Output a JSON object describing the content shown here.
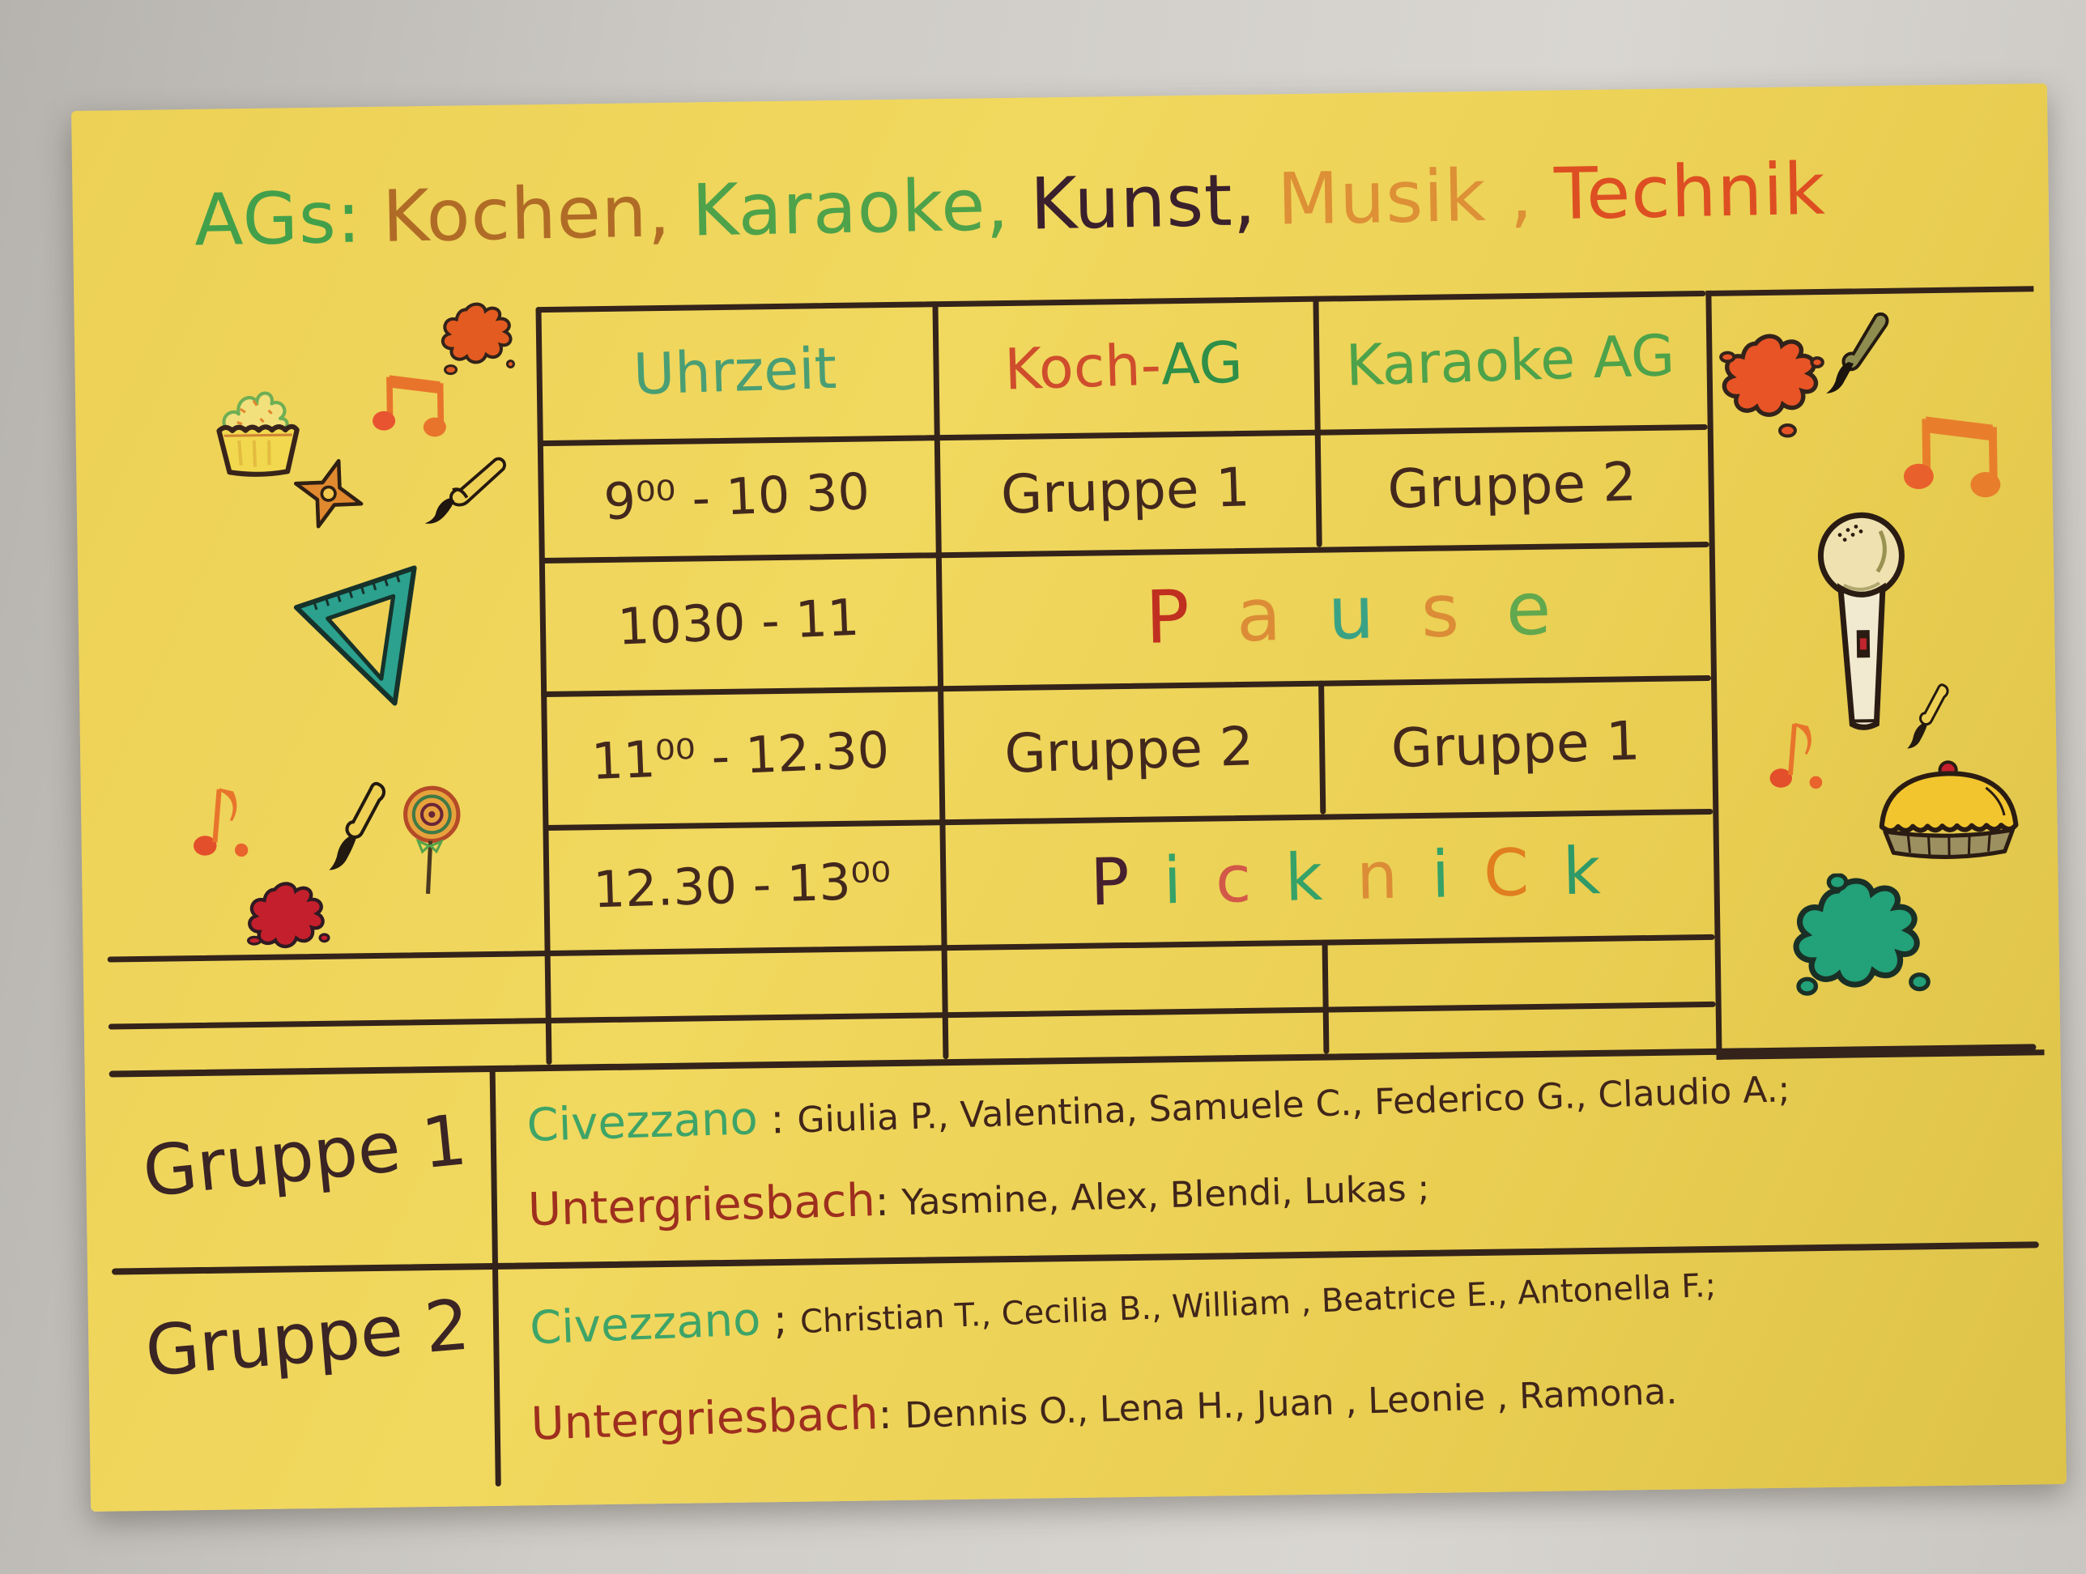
{
  "page": {
    "wall_color": "#cfccc7",
    "poster_color": "#ecd156",
    "line_color": "#33231a",
    "ink_color": "#42281c"
  },
  "title": {
    "segments": [
      {
        "text": "AGs:",
        "color": "#43a04a"
      },
      {
        "text": "Kochen,",
        "color": "#b06c26"
      },
      {
        "text": "Karaoke,",
        "color": "#4ea24a"
      },
      {
        "text": "Kunst,",
        "color": "#3a202c"
      },
      {
        "text": "Musik ,",
        "color": "#dd9036"
      },
      {
        "text": "Technik",
        "color": "#dd4f22"
      }
    ]
  },
  "schedule": {
    "header": {
      "time_label": "Uhrzeit",
      "time_color": "#4a9e74",
      "koch_parts": [
        {
          "text": "Koch-",
          "color": "#cf4d2c"
        },
        {
          "text": "AG",
          "color": "#2f8f48"
        }
      ],
      "karaoke_label": "Karaoke AG",
      "karaoke_color": "#4ea24a"
    },
    "rows": [
      {
        "time": "9⁰⁰ - 10 30",
        "koch": "Gruppe 1",
        "karaoke": "Gruppe 2"
      },
      {
        "time": "1030 - 11"
      },
      {
        "time": "11⁰⁰ - 12.30",
        "koch": "Gruppe 2",
        "karaoke": "Gruppe 1"
      },
      {
        "time": "12.30 - 13⁰⁰"
      }
    ],
    "pause_letters": [
      {
        "text": "P",
        "color": "#c03020"
      },
      {
        "text": "a",
        "color": "#dc8c36"
      },
      {
        "text": "u",
        "color": "#3aa284"
      },
      {
        "text": "s",
        "color": "#dc8c36"
      },
      {
        "text": "e",
        "color": "#62a84e"
      }
    ],
    "picknick_letters": [
      {
        "text": "P",
        "color": "#46202e"
      },
      {
        "text": "i",
        "color": "#36a268"
      },
      {
        "text": "c",
        "color": "#d25848"
      },
      {
        "text": "k",
        "color": "#36a268"
      },
      {
        "text": "n",
        "color": "#dc8c36"
      },
      {
        "text": "i",
        "color": "#36a268"
      },
      {
        "text": "C",
        "color": "#e07e20"
      },
      {
        "text": "k",
        "color": "#2f9a68"
      }
    ]
  },
  "groups": [
    {
      "label": "Gruppe 1",
      "lines": [
        {
          "location": "Civezzano",
          "color": "#3ea468",
          "sep": " : ",
          "names": "Giulia P., Valentina, Samuele C., Federico G.,  Claudio A.;"
        },
        {
          "location": "Untergriesbach",
          "color": "#9e2f1e",
          "sep": ": ",
          "names": "Yasmine,  Alex,   Blendi,    Lukas ;"
        }
      ]
    },
    {
      "label": "Gruppe 2",
      "lines": [
        {
          "location": "Civezzano",
          "color": "#3ea468",
          "sep": " ; ",
          "names": "Christian T.,  Cecilia B.,  William , Beatrice E.,   Antonella F.;"
        },
        {
          "location": "Untergriesbach",
          "color": "#9e2f1e",
          "sep": ": ",
          "names": "Dennis O.,  Lena H.,  Juan  ,  Leonie     ,   Ramona."
        }
      ]
    }
  ],
  "decorations": {
    "left": [
      "paint-splat-orange",
      "music-note-double",
      "cupcake",
      "shuriken",
      "paintbrush",
      "set-square",
      "music-note-single",
      "ink-pen",
      "lollipop",
      "paint-splat-red"
    ],
    "right": [
      "paint-splat-orange",
      "paintbrush",
      "music-note-double",
      "microphone",
      "ink-pen",
      "music-note-single",
      "pie",
      "paint-splat-teal"
    ]
  }
}
